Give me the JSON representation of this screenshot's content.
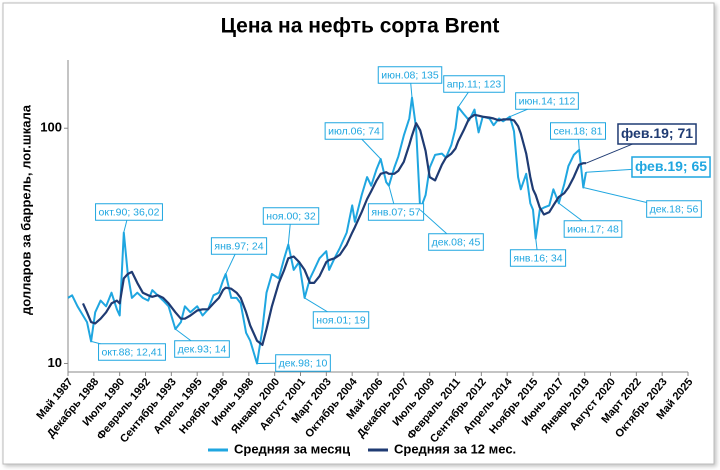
{
  "chart_data": {
    "type": "line",
    "title": "Цена на нефть сорта Brent",
    "y_label": "долларов за баррель, лог.шкала",
    "log_scale": true,
    "grid": false,
    "xlim": [
      1987.333,
      2025.333
    ],
    "xticks": [
      {
        "value": 1987.333,
        "label": "Май 1987"
      },
      {
        "value": 1988.917,
        "label": "Декабрь 1988"
      },
      {
        "value": 1990.5,
        "label": "Июль 1990"
      },
      {
        "value": 1992.083,
        "label": "Февраль 1992"
      },
      {
        "value": 1993.667,
        "label": "Сентябрь 1993"
      },
      {
        "value": 1995.25,
        "label": "Апрель 1995"
      },
      {
        "value": 1996.833,
        "label": "Ноябрь 1996"
      },
      {
        "value": 1998.417,
        "label": "Июнь 1998"
      },
      {
        "value": 2000.0,
        "label": "Январь 2000"
      },
      {
        "value": 2001.583,
        "label": "Август 2001"
      },
      {
        "value": 2003.167,
        "label": "Март 2003"
      },
      {
        "value": 2004.75,
        "label": "Октябрь 2004"
      },
      {
        "value": 2006.333,
        "label": "Май 2006"
      },
      {
        "value": 2007.917,
        "label": "Декабрь 2007"
      },
      {
        "value": 2009.5,
        "label": "Июль 2009"
      },
      {
        "value": 2011.083,
        "label": "Февраль 2011"
      },
      {
        "value": 2012.667,
        "label": "Сентябрь 2012"
      },
      {
        "value": 2014.25,
        "label": "Апрель 2014"
      },
      {
        "value": 2015.833,
        "label": "Ноябрь 2015"
      },
      {
        "value": 2017.417,
        "label": "Июнь 2017"
      },
      {
        "value": 2019.0,
        "label": "Январь 2019"
      },
      {
        "value": 2020.583,
        "label": "Август 2020"
      },
      {
        "value": 2022.167,
        "label": "Март 2022"
      },
      {
        "value": 2023.75,
        "label": "Октябрь 2023"
      },
      {
        "value": 2025.333,
        "label": "Май 2025"
      }
    ],
    "ylim": [
      9.2,
      195
    ],
    "yticks": [
      10,
      100
    ],
    "x": [
      1987.333,
      1987.583,
      1987.917,
      1988.25,
      1988.5,
      1988.75,
      1989.0,
      1989.333,
      1989.667,
      1990.0,
      1990.333,
      1990.5,
      1990.75,
      1991.0,
      1991.25,
      1991.583,
      1991.917,
      1992.25,
      1992.5,
      1992.833,
      1993.167,
      1993.5,
      1993.917,
      1994.25,
      1994.5,
      1994.833,
      1995.25,
      1995.583,
      1995.917,
      1996.25,
      1996.583,
      1996.833,
      1997.0,
      1997.333,
      1997.667,
      1997.917,
      1998.25,
      1998.5,
      1998.917,
      1999.25,
      1999.5,
      1999.833,
      2000.25,
      2000.583,
      2000.833,
      2001.167,
      2001.5,
      2001.833,
      2002.167,
      2002.417,
      2002.75,
      2003.167,
      2003.333,
      2003.667,
      2004.0,
      2004.417,
      2004.75,
      2004.917,
      2005.333,
      2005.667,
      2005.917,
      2006.25,
      2006.5,
      2006.833,
      2007.0,
      2007.333,
      2007.583,
      2007.917,
      2008.25,
      2008.417,
      2008.667,
      2008.917,
      2009.25,
      2009.5,
      2009.833,
      2010.25,
      2010.5,
      2010.833,
      2011.083,
      2011.25,
      2011.583,
      2011.917,
      2012.25,
      2012.5,
      2012.75,
      2013.167,
      2013.417,
      2013.75,
      2014.0,
      2014.417,
      2014.667,
      2014.917,
      2015.083,
      2015.417,
      2015.667,
      2015.833,
      2016.0,
      2016.25,
      2016.5,
      2016.833,
      2017.083,
      2017.417,
      2017.75,
      2018.0,
      2018.333,
      2018.667,
      2018.917,
      2019.083
    ],
    "series": [
      {
        "name": "Средняя за месяц",
        "color": "#1fa6e0",
        "values": [
          19,
          19.5,
          17.5,
          16,
          15,
          12.41,
          16.5,
          18.5,
          17.5,
          20,
          17,
          16,
          36.02,
          24,
          19,
          20,
          19,
          18.5,
          20.5,
          19.5,
          18.5,
          17.5,
          14,
          15,
          17.5,
          16.5,
          17.5,
          16,
          17,
          19.5,
          20,
          22.5,
          24,
          19,
          19,
          18,
          13.5,
          12.5,
          10,
          14,
          20,
          24,
          23,
          28,
          32,
          25,
          27,
          19,
          23,
          25,
          28,
          30,
          25,
          28,
          31,
          36,
          47,
          40,
          52,
          62,
          57,
          67,
          74,
          59,
          57,
          68,
          76,
          93,
          110,
          135,
          100,
          45,
          52,
          68,
          77,
          78,
          75,
          85,
          100,
          123,
          115,
          108,
          120,
          96,
          112,
          110,
          103,
          110,
          107,
          112,
          97,
          62,
          55,
          64,
          48,
          45,
          34,
          45,
          46,
          47,
          55,
          48,
          58,
          69,
          77,
          81,
          56,
          65
        ]
      },
      {
        "name": "Средняя за 12 мес.",
        "color": "#1f3b73",
        "values": [
          null,
          null,
          null,
          18,
          16.5,
          15,
          14.8,
          15.5,
          16.5,
          18,
          18.5,
          18,
          23,
          24,
          24.5,
          22,
          20,
          19.5,
          19.2,
          19.5,
          19,
          18,
          16.5,
          15.5,
          15.5,
          16,
          16.8,
          17,
          17,
          18,
          19,
          20.5,
          21,
          20.8,
          20,
          19,
          16.5,
          14.5,
          12.5,
          12,
          14,
          17.5,
          22,
          25,
          28,
          28.5,
          27,
          25,
          22,
          22,
          23.5,
          27,
          27.5,
          28,
          29,
          32,
          36,
          38,
          44,
          50,
          54,
          60,
          64,
          65,
          64,
          64,
          66,
          72,
          85,
          93,
          105,
          98,
          80,
          62,
          60,
          70,
          75,
          78,
          82,
          88,
          98,
          110,
          114,
          113,
          112,
          111,
          110,
          108,
          109,
          109,
          108,
          102,
          95,
          78,
          62,
          55,
          52,
          46,
          43,
          44,
          47,
          51,
          53,
          56,
          62,
          70,
          71,
          71
        ]
      }
    ],
    "annotations": [
      {
        "text": "окт.88; 12,41",
        "x": 1988.75,
        "y": 12.41,
        "series": 0
      },
      {
        "text": "окт.90; 36,02",
        "x": 1990.75,
        "y": 36.02,
        "series": 0
      },
      {
        "text": "дек.93; 14",
        "x": 1993.917,
        "y": 14,
        "series": 0
      },
      {
        "text": "янв.97; 24",
        "x": 1997.0,
        "y": 24,
        "series": 0
      },
      {
        "text": "дек.98; 10",
        "x": 1998.917,
        "y": 10,
        "series": 0
      },
      {
        "text": "ноя.00; 32",
        "x": 2000.833,
        "y": 32,
        "series": 0
      },
      {
        "text": "ноя.01; 19",
        "x": 2001.833,
        "y": 19,
        "series": 0
      },
      {
        "text": "июл.06; 74",
        "x": 2006.5,
        "y": 74,
        "series": 0
      },
      {
        "text": "янв.07; 57",
        "x": 2007.0,
        "y": 57,
        "series": 0
      },
      {
        "text": "июн.08; 135",
        "x": 2008.417,
        "y": 135,
        "series": 0
      },
      {
        "text": "дек.08; 45",
        "x": 2008.917,
        "y": 45,
        "series": 0
      },
      {
        "text": "апр.11; 123",
        "x": 2011.25,
        "y": 123,
        "series": 0
      },
      {
        "text": "июн.14; 112",
        "x": 2014.417,
        "y": 112,
        "series": 0
      },
      {
        "text": "янв.16; 34",
        "x": 2016.0,
        "y": 34,
        "series": 0
      },
      {
        "text": "сен.18; 81",
        "x": 2018.667,
        "y": 81,
        "series": 0
      },
      {
        "text": "июн.17; 48",
        "x": 2017.417,
        "y": 48,
        "series": 0
      },
      {
        "text": "дек.18; 56",
        "x": 2018.917,
        "y": 56,
        "series": 0
      },
      {
        "text": "фев.19; 65",
        "x": 2019.083,
        "y": 65,
        "series": 0
      },
      {
        "text": "фев.19; 71",
        "x": 2019.083,
        "y": 71,
        "series": 1
      }
    ]
  }
}
